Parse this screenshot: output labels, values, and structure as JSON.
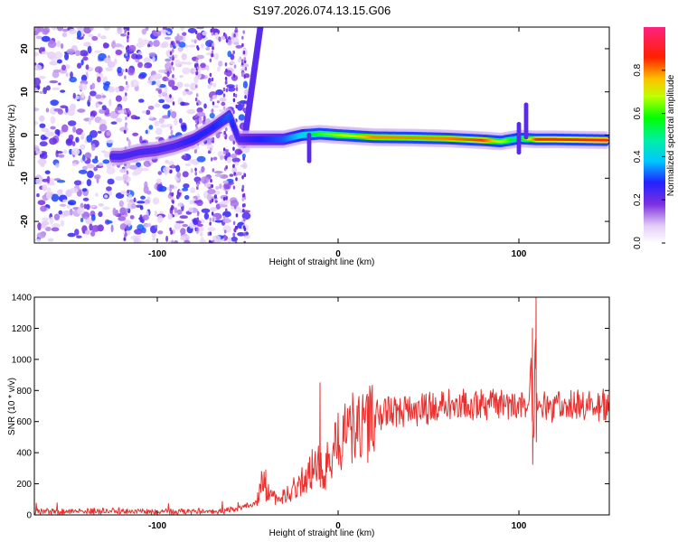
{
  "title": "S197.2026.074.13.15.G06",
  "chart_data": [
    {
      "type": "heatmap",
      "title": "S197.2026.074.13.15.G06",
      "xlabel": "Height of straight line (km)",
      "ylabel": "Frequency (Hz)",
      "xlim": [
        -168,
        150
      ],
      "ylim": [
        -25,
        25
      ],
      "xticks": [
        -100,
        0,
        100
      ],
      "xtick_labels": [
        "-100",
        "0",
        "100"
      ],
      "yticks": [
        -20,
        -10,
        0,
        10,
        20
      ],
      "ytick_labels": [
        "-20",
        "-10",
        "0",
        "10",
        "20"
      ],
      "colorbar": {
        "label": "Normalized spectral amplitude",
        "range": [
          0,
          1
        ],
        "ticks": [
          0.0,
          0.2,
          0.4,
          0.6,
          0.8
        ],
        "tick_labels": [
          "0.0",
          "0.2",
          "0.4",
          "0.6",
          "0.8"
        ],
        "colormap": "rainbow"
      },
      "ridge": {
        "description": "dominant frequency ridge",
        "x": [
          -120,
          -110,
          -100,
          -90,
          -80,
          -70,
          -60,
          -55,
          -45,
          -30,
          -20,
          -10,
          0,
          20,
          40,
          60,
          80,
          90,
          100,
          110,
          120,
          150
        ],
        "y": [
          -5,
          -4,
          -3.5,
          -2.5,
          -1,
          1.5,
          4.5,
          -1,
          -1,
          -1,
          0,
          0.3,
          0,
          -0.5,
          -0.6,
          -0.8,
          -1.2,
          -1.5,
          -0.8,
          -1,
          -1,
          -1.2
        ],
        "amplitude": [
          0.3,
          0.3,
          0.3,
          0.3,
          0.35,
          0.35,
          0.4,
          0.3,
          0.35,
          0.4,
          0.5,
          0.6,
          0.65,
          0.8,
          0.8,
          0.8,
          0.85,
          0.7,
          0.5,
          0.85,
          0.9,
          0.9
        ]
      }
    },
    {
      "type": "line",
      "xlabel": "Height of straight line (km)",
      "ylabel": "SNR (10 * v/v)",
      "xlim": [
        -168,
        150
      ],
      "ylim": [
        0,
        1400
      ],
      "xticks": [
        -100,
        0,
        100
      ],
      "xtick_labels": [
        "-100",
        "0",
        "100"
      ],
      "yticks": [
        0,
        200,
        400,
        600,
        800,
        1000,
        1200,
        1400
      ],
      "ytick_labels": [
        "0",
        "200",
        "400",
        "600",
        "800",
        "1000",
        "1200",
        "1400"
      ],
      "color": "#e8302e",
      "series": [
        {
          "name": "SNR",
          "x": [
            -168,
            -150,
            -120,
            -100,
            -80,
            -65,
            -55,
            -45,
            -42,
            -38,
            -35,
            -30,
            -25,
            -20,
            -15,
            -12,
            -10,
            -8,
            -5,
            0,
            5,
            10,
            20,
            30,
            40,
            50,
            60,
            70,
            80,
            90,
            100,
            105,
            107,
            108,
            109,
            110,
            112,
            115,
            120,
            130,
            140,
            150
          ],
          "y": [
            20,
            20,
            25,
            20,
            22,
            25,
            40,
            80,
            220,
            130,
            110,
            120,
            160,
            220,
            280,
            330,
            360,
            200,
            380,
            460,
            520,
            570,
            620,
            660,
            670,
            680,
            690,
            690,
            700,
            700,
            690,
            690,
            1000,
            300,
            1200,
            680,
            690,
            690,
            700,
            700,
            700,
            700
          ]
        }
      ],
      "spikes": [
        {
          "x": -40,
          "y": 290
        },
        {
          "x": -10,
          "y": 850
        },
        {
          "x": 107.5,
          "y": 1200
        },
        {
          "x": 109.5,
          "y": 1400
        }
      ]
    }
  ]
}
